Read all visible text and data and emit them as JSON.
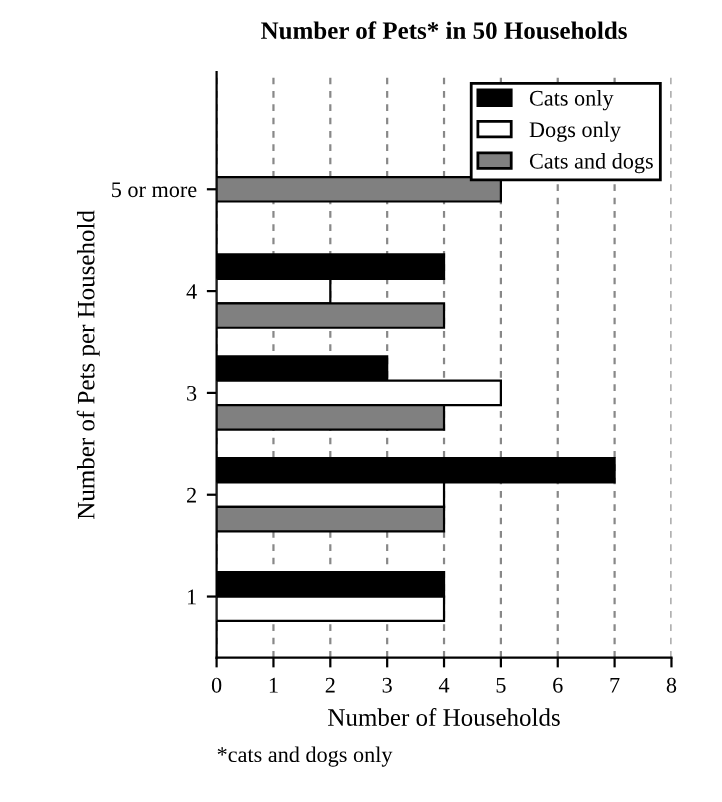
{
  "chart_data": {
    "type": "bar",
    "orientation": "horizontal",
    "title": "Number of Pets* in 50 Households",
    "xlabel": "Number of Households",
    "ylabel": "Number of Pets per Household",
    "categories": [
      "5 or more",
      "4",
      "3",
      "2",
      "1"
    ],
    "series": [
      {
        "name": "Cats only",
        "color": "#000000",
        "values": [
          null,
          4,
          3,
          7,
          4
        ]
      },
      {
        "name": "Dogs only",
        "color": "#ffffff",
        "values": [
          null,
          2,
          5,
          4,
          4
        ]
      },
      {
        "name": "Cats and dogs",
        "color": "#808080",
        "values": [
          5,
          4,
          4,
          4,
          null
        ]
      }
    ],
    "xlim": [
      0,
      8
    ],
    "xticks": [
      0,
      1,
      2,
      3,
      4,
      5,
      6,
      7,
      8
    ],
    "grid": "x",
    "legend": "top right",
    "annotations": [
      "*cats and dogs only"
    ]
  }
}
